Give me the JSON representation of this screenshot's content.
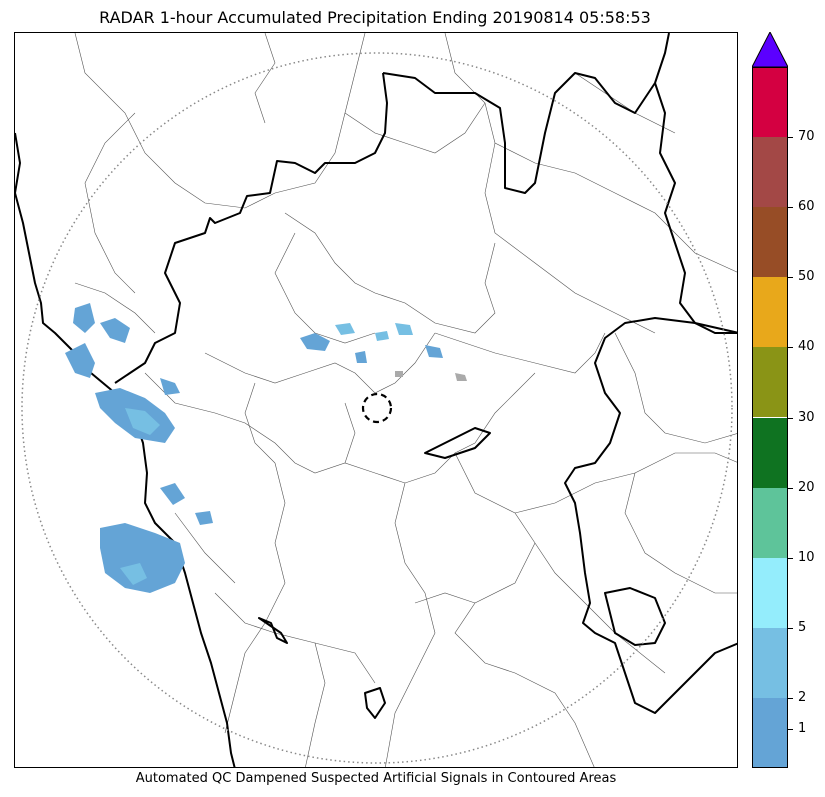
{
  "title": "RADAR 1-hour Accumulated Precipitation Ending 20190814 05:58:53",
  "caption": "Automated QC Dampened Suspected Artificial Signals in Contoured Areas",
  "colorbar": {
    "extend_color": "#5b00ff",
    "segments": [
      {
        "color": "#64a4d6"
      },
      {
        "color": "#76bfe3"
      },
      {
        "color": "#94edfc"
      },
      {
        "color": "#5ec49a"
      },
      {
        "color": "#0f7321"
      },
      {
        "color": "#8a9416"
      },
      {
        "color": "#e8a81b"
      },
      {
        "color": "#974d26"
      },
      {
        "color": "#a34846"
      },
      {
        "color": "#d40041"
      }
    ],
    "tick_labels": [
      "1",
      "2",
      "5",
      "10",
      "20",
      "30",
      "40",
      "50",
      "60",
      "70"
    ]
  },
  "map": {
    "radar_range_ring": "dotted",
    "precip_colors": {
      "light": "#64a4d6",
      "moderate": "#76bfe3"
    }
  }
}
